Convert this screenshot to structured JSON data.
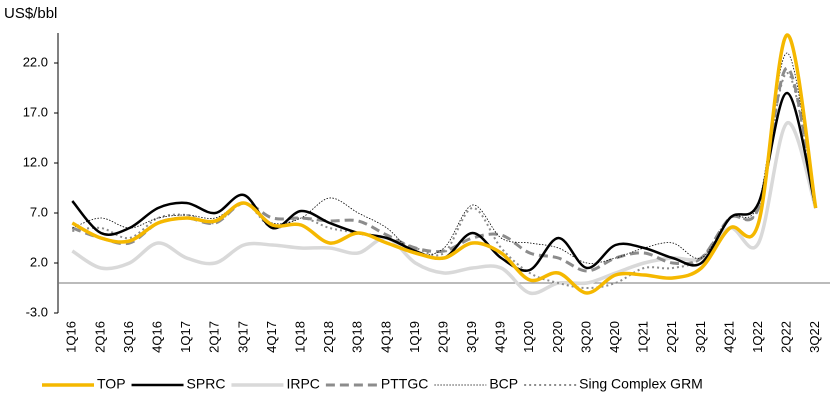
{
  "chart_data": {
    "type": "line",
    "y_label": "US$/bbl",
    "categories": [
      "1Q16",
      "2Q16",
      "3Q16",
      "4Q16",
      "1Q17",
      "2Q17",
      "3Q17",
      "4Q17",
      "1Q18",
      "2Q18",
      "3Q18",
      "4Q18",
      "1Q19",
      "2Q19",
      "3Q19",
      "4Q19",
      "1Q20",
      "2Q20",
      "3Q20",
      "4Q20",
      "1Q21",
      "2Q21",
      "3Q21",
      "4Q21",
      "1Q22",
      "2Q22",
      "3Q22"
    ],
    "ylim": [
      -3,
      25
    ],
    "yticks": [
      {
        "value": -3,
        "label": "-3.0"
      },
      {
        "value": 2,
        "label": "2.0"
      },
      {
        "value": 7,
        "label": "7.0"
      },
      {
        "value": 12,
        "label": "12.0"
      },
      {
        "value": 17,
        "label": "17.0"
      },
      {
        "value": 22,
        "label": "22.0"
      }
    ],
    "grid": false,
    "legend": "bottom",
    "series": [
      {
        "name": "TOP",
        "color": "#f5b800",
        "line_width": 3.5,
        "dash": "solid",
        "values": [
          6.0,
          4.5,
          4.2,
          6.0,
          6.5,
          6.2,
          8.0,
          5.8,
          5.8,
          4.0,
          5.0,
          4.0,
          3.0,
          2.5,
          4.0,
          3.0,
          0.3,
          1.0,
          -1.0,
          0.8,
          0.8,
          0.5,
          1.5,
          5.5,
          6.0,
          24.8,
          7.5
        ]
      },
      {
        "name": "SPRC",
        "color": "#000000",
        "line_width": 2.5,
        "dash": "solid",
        "values": [
          8.2,
          5.0,
          5.5,
          7.5,
          8.0,
          7.0,
          8.8,
          5.5,
          7.2,
          6.0,
          5.0,
          4.5,
          3.2,
          2.5,
          5.0,
          2.5,
          1.3,
          4.5,
          1.5,
          3.8,
          3.5,
          2.5,
          2.0,
          6.5,
          8.0,
          19.0,
          7.5
        ]
      },
      {
        "name": "IRPC",
        "color": "#d9d9d9",
        "line_width": 3.5,
        "dash": "solid",
        "values": [
          3.2,
          1.5,
          2.0,
          4.0,
          2.5,
          2.0,
          3.8,
          3.8,
          3.5,
          3.5,
          3.0,
          4.5,
          2.0,
          1.0,
          1.5,
          1.5,
          -1.0,
          0.0,
          0.0,
          1.0,
          2.0,
          2.5,
          2.5,
          5.5,
          4.0,
          16.0,
          7.5
        ]
      },
      {
        "name": "PTTGC",
        "color": "#8c8c8c",
        "line_width": 3,
        "dash": "dashed",
        "values": [
          5.5,
          4.5,
          4.0,
          6.0,
          6.5,
          6.0,
          8.0,
          6.5,
          6.5,
          6.2,
          6.2,
          4.8,
          3.5,
          3.2,
          4.5,
          4.8,
          3.0,
          2.5,
          1.2,
          2.5,
          3.0,
          2.0,
          2.5,
          6.5,
          7.5,
          21.5,
          7.5
        ]
      },
      {
        "name": "BCP",
        "color": "#000000",
        "line_width": 0.8,
        "dash": "dotted",
        "values": [
          5.5,
          6.5,
          5.5,
          6.5,
          6.8,
          6.5,
          8.0,
          6.0,
          6.5,
          8.5,
          7.0,
          5.5,
          3.0,
          3.5,
          7.8,
          4.5,
          4.0,
          3.5,
          2.0,
          2.5,
          3.5,
          4.0,
          2.5,
          6.5,
          8.0,
          23.0,
          7.5
        ]
      },
      {
        "name": "Sing Complex GRM",
        "color": "#8c8c8c",
        "line_width": 2,
        "dash": "dotted",
        "values": [
          5.2,
          5.5,
          4.5,
          6.5,
          6.8,
          6.0,
          8.0,
          5.5,
          6.5,
          5.5,
          5.0,
          4.5,
          3.5,
          3.0,
          7.5,
          3.5,
          1.0,
          0.0,
          -0.5,
          0.0,
          1.5,
          1.5,
          2.5,
          6.5,
          7.5,
          21.0,
          7.5
        ]
      }
    ]
  }
}
